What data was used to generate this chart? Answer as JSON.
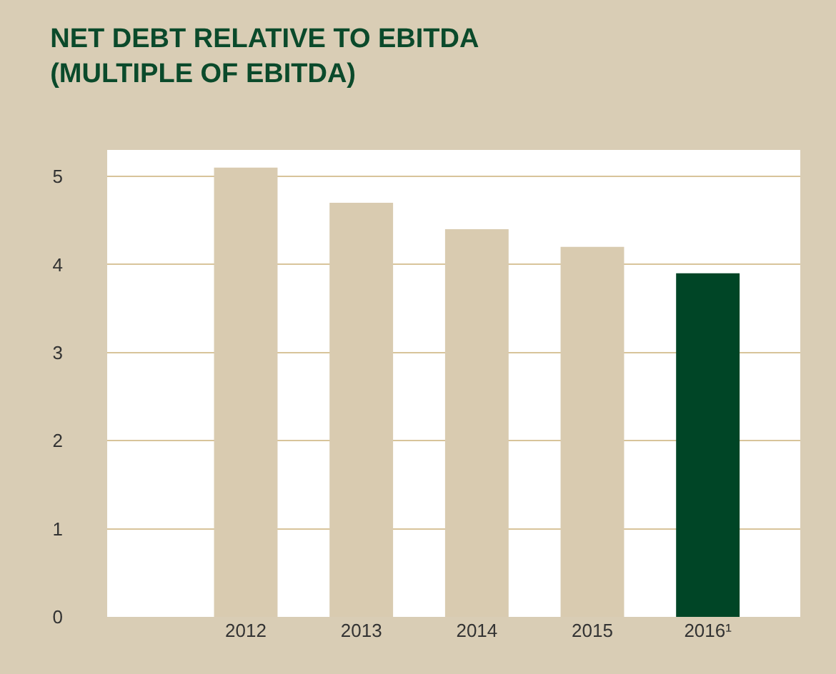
{
  "chart_data": {
    "type": "bar",
    "title": "NET DEBT RELATIVE TO EBITDA\n(MULTIPLE OF EBITDA)",
    "categories": [
      "2012",
      "2013",
      "2014",
      "2015",
      "2016¹"
    ],
    "values": [
      5.1,
      4.7,
      4.4,
      4.2,
      3.9
    ],
    "colors": [
      "#d9cbb0",
      "#d9cbb0",
      "#d9cbb0",
      "#d9cbb0",
      "#004526"
    ],
    "ylim": [
      0,
      5.3
    ],
    "yticks": [
      0,
      1,
      2,
      3,
      4,
      5
    ],
    "grid": "y"
  }
}
